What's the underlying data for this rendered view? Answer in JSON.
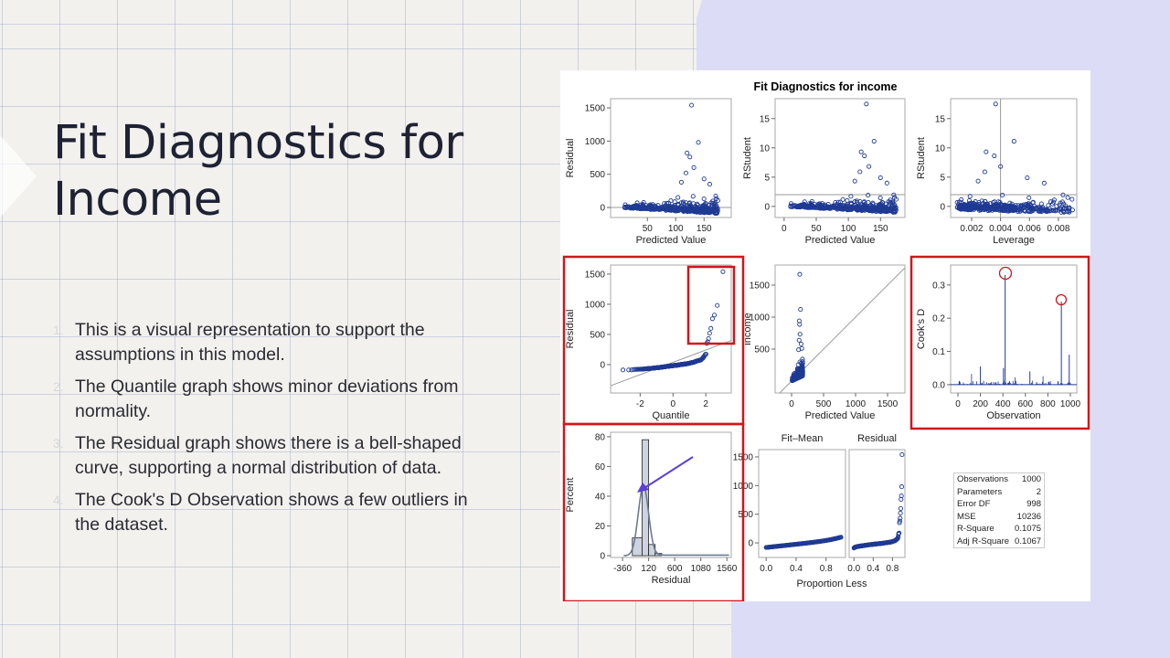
{
  "slide": {
    "title": "Fit Diagnostics for Income",
    "bullets": [
      {
        "num": "1.",
        "text": "This is a visual representation to support the assumptions in this model."
      },
      {
        "num": "2.",
        "text": "The Quantile graph shows minor deviations from normality."
      },
      {
        "num": "3.",
        "text": "The Residual graph shows there is a bell-shaped curve, supporting a normal distribution of data."
      },
      {
        "num": "4.",
        "text": "The Cook's D Observation shows a few outliers in the dataset."
      }
    ]
  },
  "colors": {
    "background": "#f2f1ee",
    "accent_purple": "#dcdcf6",
    "highlight_red": "#d0161b",
    "arrow": "#5b3fd6",
    "points": "#1f3a93",
    "title_text": "#1e2233"
  },
  "chart_data": {
    "title": "Fit Diagnostics for income",
    "panels": [
      {
        "type": "scatter",
        "xlabel": "Predicted Value",
        "ylabel": "Residual",
        "xticks": [
          50,
          100,
          150
        ],
        "yticks": [
          0,
          500,
          1000,
          1500
        ],
        "reference_lines": {
          "y": [
            0
          ]
        }
      },
      {
        "type": "scatter",
        "xlabel": "Predicted Value",
        "ylabel": "RStudent",
        "xticks": [
          0,
          50,
          100,
          150
        ],
        "yticks": [
          0,
          5,
          10,
          15
        ],
        "reference_lines": {
          "y": [
            2
          ]
        }
      },
      {
        "type": "scatter",
        "xlabel": "Leverage",
        "ylabel": "RStudent",
        "xticks": [
          "0.002",
          "0.004",
          "0.006",
          "0.008"
        ],
        "yticks": [
          0,
          5,
          10,
          15
        ],
        "reference_lines": {
          "x": [
            0.004
          ],
          "y": [
            2
          ]
        }
      },
      {
        "type": "scatter",
        "xlabel": "Quantile",
        "ylabel": "Residual",
        "xticks": [
          -2,
          0,
          2
        ],
        "yticks": [
          0,
          500,
          1000,
          1500
        ]
      },
      {
        "type": "scatter",
        "xlabel": "Predicted Value",
        "ylabel": "income",
        "xticks": [
          0,
          500,
          1000,
          1500
        ],
        "yticks": [
          500,
          1000,
          1500
        ]
      },
      {
        "type": "bar",
        "xlabel": "Observation",
        "ylabel": "Cook's D",
        "xticks": [
          0,
          200,
          400,
          600,
          800,
          1000
        ],
        "yticks": [
          "0.0",
          "0.1",
          "0.2",
          "0.3"
        ],
        "outliers": [
          {
            "x": 420,
            "y": 0.33
          },
          {
            "x": 920,
            "y": 0.25
          }
        ]
      },
      {
        "type": "bar",
        "xlabel": "Residual",
        "ylabel": "Percent",
        "xticks": [
          -360,
          120,
          600,
          1080,
          1560
        ],
        "yticks": [
          0,
          20,
          40,
          60,
          80
        ],
        "bins": [
          {
            "from": -180,
            "to": 0,
            "value": 12
          },
          {
            "from": 0,
            "to": 120,
            "value": 78
          },
          {
            "from": 120,
            "to": 240,
            "value": 7.5
          },
          {
            "from": 240,
            "to": 360,
            "value": 1.5
          }
        ]
      },
      {
        "type": "scatter",
        "xlabel": "Proportion Less",
        "headers": [
          "Fit–Mean",
          "Residual"
        ],
        "xticks": [
          "0.0",
          "0.4",
          "0.8"
        ],
        "yticks": [
          0,
          500,
          1000,
          1500
        ]
      }
    ],
    "stats": [
      {
        "label": "Observations",
        "value": "1000"
      },
      {
        "label": "Parameters",
        "value": "2"
      },
      {
        "label": "Error DF",
        "value": "998"
      },
      {
        "label": "MSE",
        "value": "10236"
      },
      {
        "label": "R-Square",
        "value": "0.1075"
      },
      {
        "label": "Adj R-Square",
        "value": "0.1067"
      }
    ]
  }
}
